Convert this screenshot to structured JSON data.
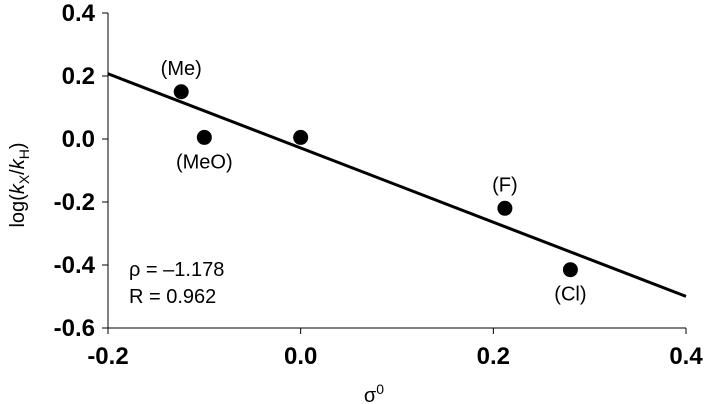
{
  "chart_data": {
    "type": "scatter",
    "title": "",
    "xlabel": "σ",
    "xlabel_superscript": "0",
    "ylabel": {
      "prefix": "log(",
      "k1": "k",
      "sub1": "X",
      "slash": "/",
      "k2": "k",
      "sub2": "H",
      "suffix": ")"
    },
    "xlim": [
      -0.2,
      0.4
    ],
    "ylim": [
      -0.6,
      0.4
    ],
    "x_ticks": [
      -0.2,
      0.0,
      0.2,
      0.4
    ],
    "x_tick_labels": [
      "-0.2",
      "0.0",
      "0.2",
      "0.4"
    ],
    "y_ticks": [
      0.4,
      0.2,
      0.0,
      -0.2,
      -0.4,
      -0.6
    ],
    "y_tick_labels": [
      "0.4",
      "0.2",
      "0.0",
      "-0.2",
      "-0.4",
      "-0.6"
    ],
    "grid": false,
    "points": [
      {
        "x": -0.124,
        "y": 0.15,
        "label": "(Me)",
        "label_pos": "above"
      },
      {
        "x": -0.1,
        "y": 0.005,
        "label": "(MeO)",
        "label_pos": "below"
      },
      {
        "x": 0.0,
        "y": 0.005,
        "label": "",
        "label_pos": "none"
      },
      {
        "x": 0.212,
        "y": -0.22,
        "label": "(F)",
        "label_pos": "above"
      },
      {
        "x": 0.28,
        "y": -0.415,
        "label": "(Cl)",
        "label_pos": "below"
      }
    ],
    "fit_line": {
      "slope": -1.178,
      "intercept": -0.0285,
      "x_range": [
        -0.2,
        0.4
      ]
    },
    "annotations": [
      "ρ = –1.178",
      "R = 0.962"
    ]
  }
}
